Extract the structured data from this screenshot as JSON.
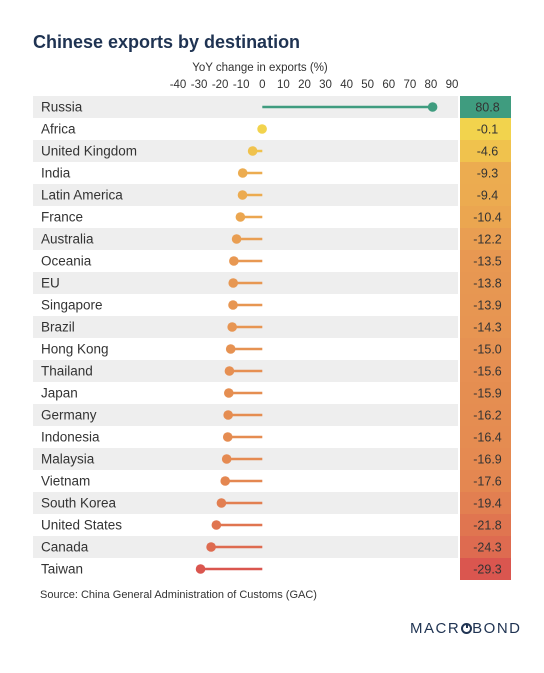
{
  "chart_data": {
    "type": "lollipop",
    "title": "Chinese exports by destination",
    "xlabel": "YoY change in exports (%)",
    "xlim": [
      -40,
      90
    ],
    "xticks": [
      -40,
      -30,
      -20,
      -10,
      0,
      10,
      20,
      30,
      40,
      50,
      60,
      70,
      80,
      90
    ],
    "categories": [
      "Russia",
      "Africa",
      "United Kingdom",
      "India",
      "Latin America",
      "France",
      "Australia",
      "Oceania",
      "EU",
      "Singapore",
      "Brazil",
      "Hong Kong",
      "Thailand",
      "Japan",
      "Germany",
      "Indonesia",
      "Malaysia",
      "Vietnam",
      "South Korea",
      "United States",
      "Canada",
      "Taiwan"
    ],
    "values": [
      80.8,
      -0.1,
      -4.6,
      -9.3,
      -9.4,
      -10.4,
      -12.2,
      -13.5,
      -13.8,
      -13.9,
      -14.3,
      -15.0,
      -15.6,
      -15.9,
      -16.2,
      -16.4,
      -16.9,
      -17.6,
      -19.4,
      -21.8,
      -24.3,
      -29.3
    ],
    "value_labels": [
      "80.8",
      "-0.1",
      "-4.6",
      "-9.3",
      "-9.4",
      "-10.4",
      "-12.2",
      "-13.5",
      "-13.8",
      "-13.9",
      "-14.3",
      "-15.0",
      "-15.6",
      "-15.9",
      "-16.2",
      "-16.4",
      "-16.9",
      "-17.6",
      "-19.4",
      "-21.8",
      "-24.3",
      "-29.3"
    ],
    "colors": {
      "positive": "#3f9c7f",
      "near_zero": "#f2d34d",
      "low": "#f0c04d",
      "mid": "#e89a52",
      "high": "#d9534f"
    },
    "row_shading": "alternating",
    "grid": false
  },
  "source": "Source: China General Administration of Customs (GAC)",
  "logo": "MACROBOND"
}
